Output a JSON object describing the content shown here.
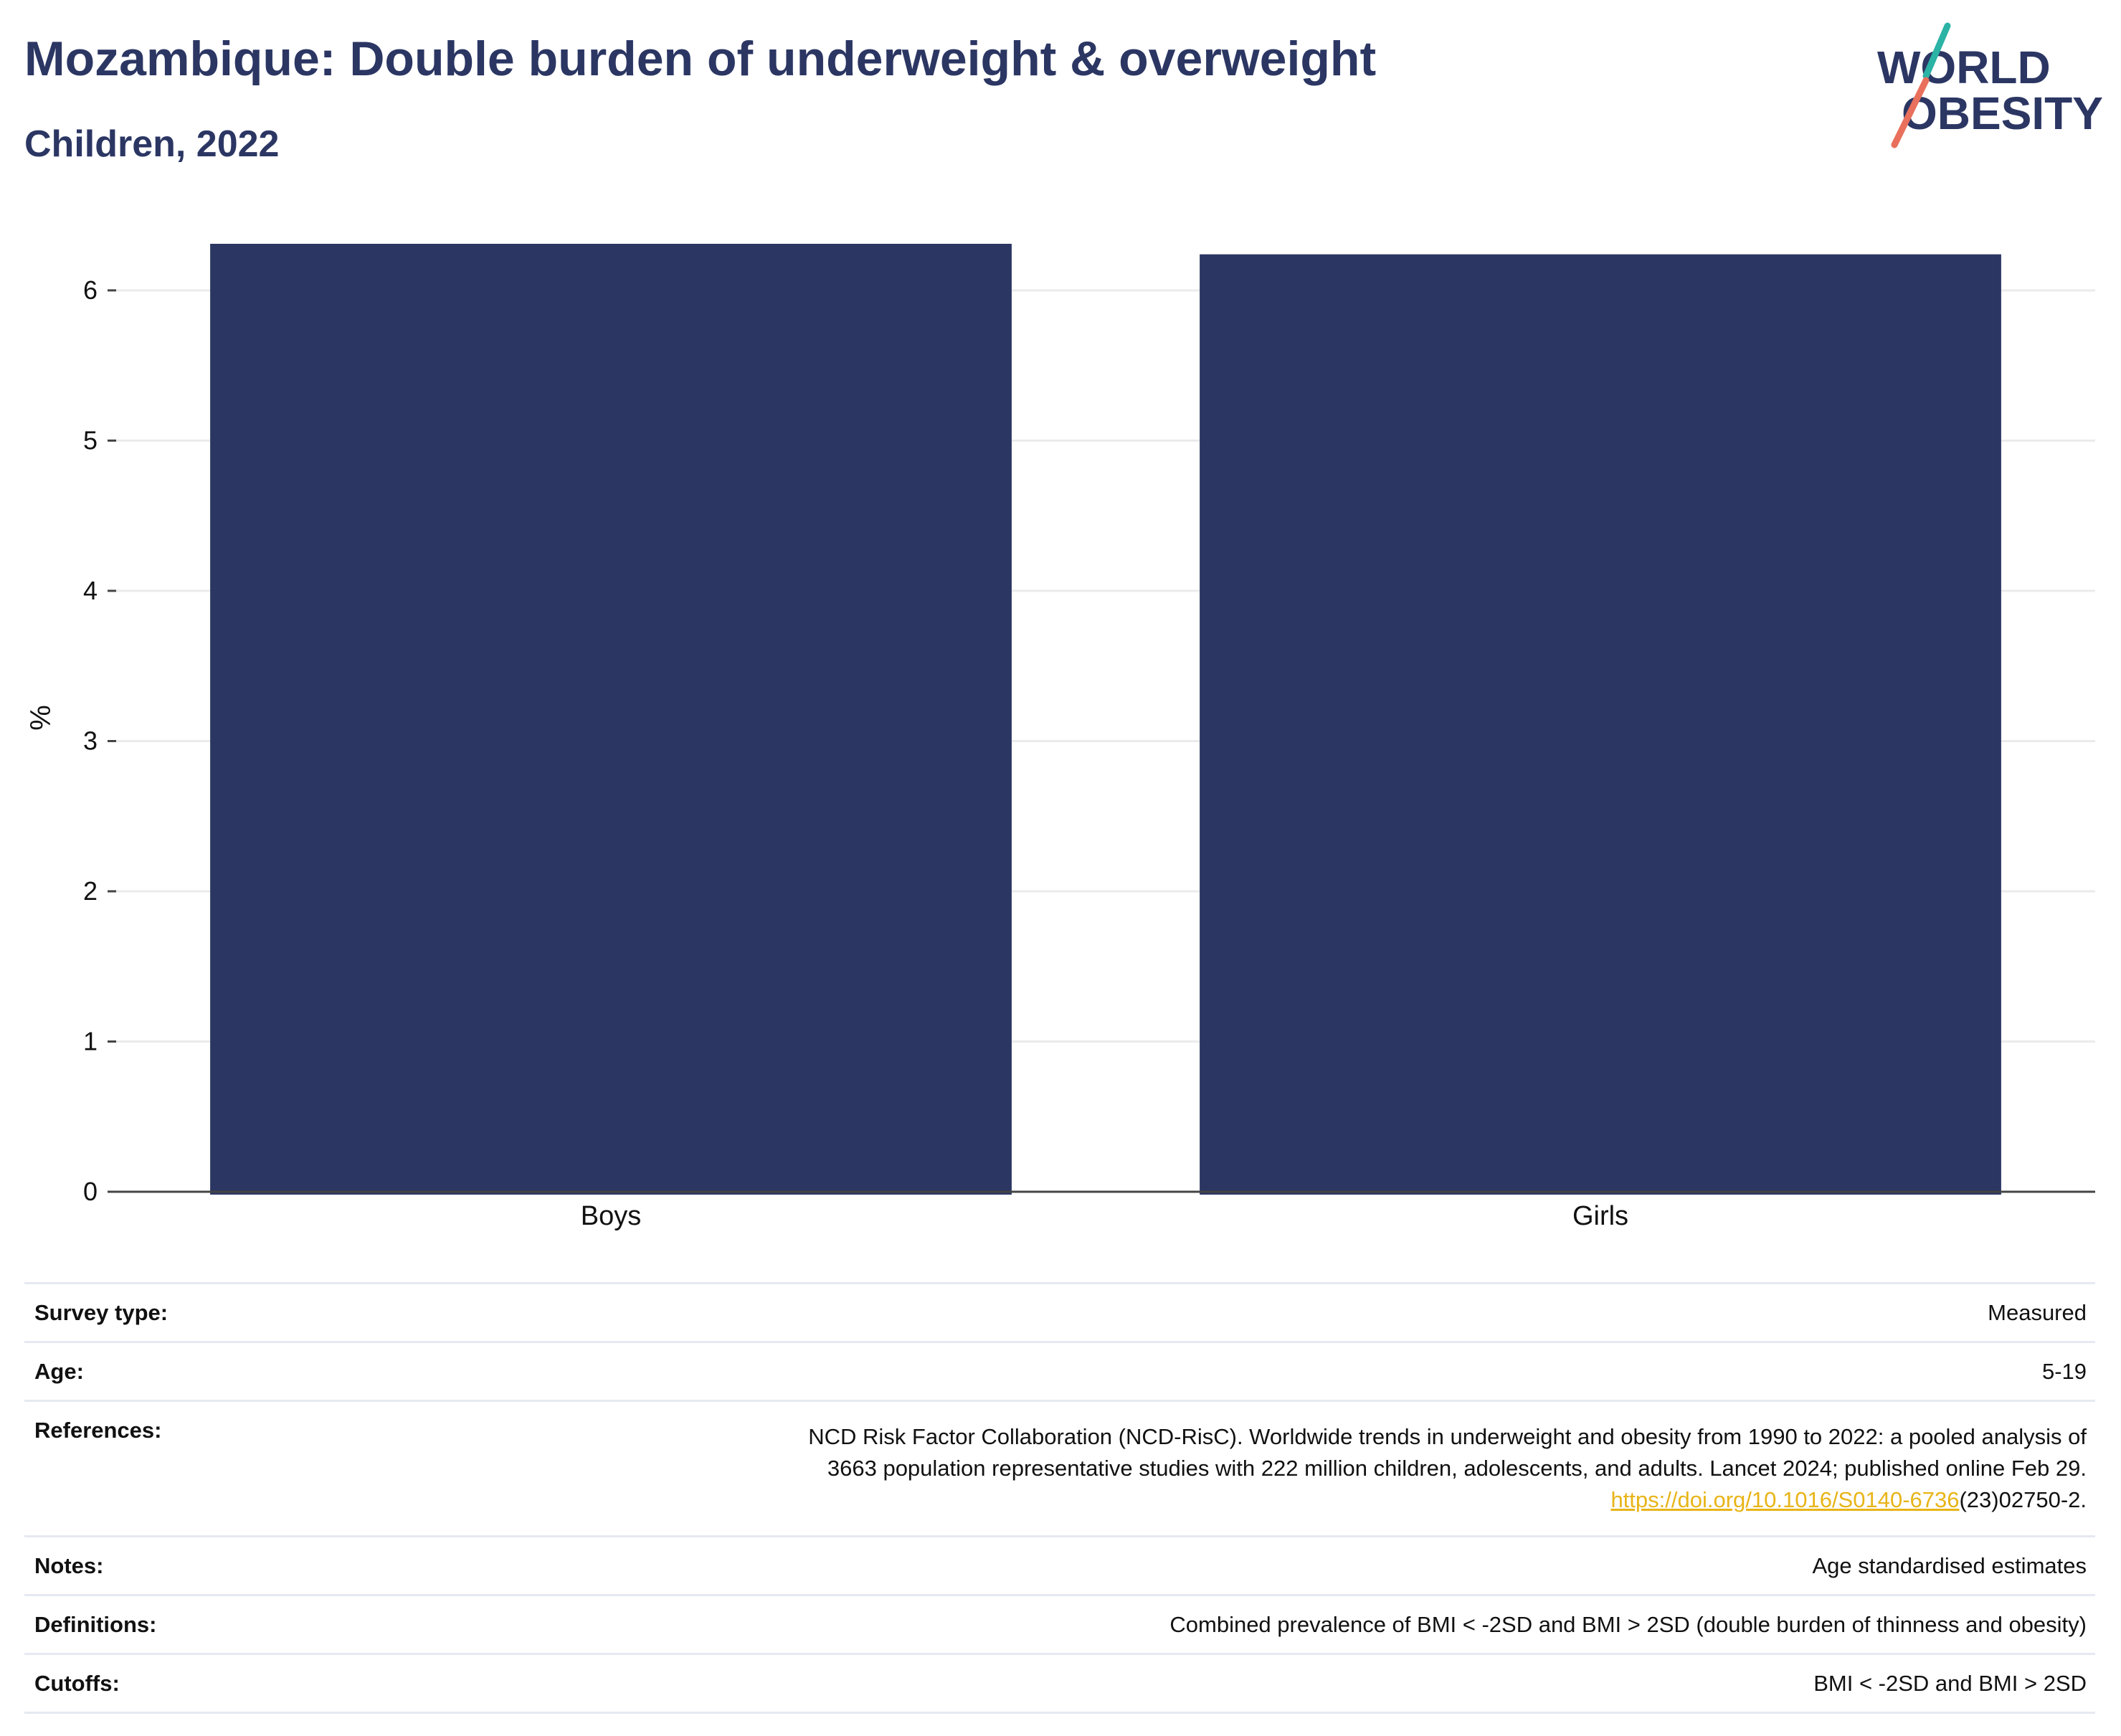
{
  "header": {
    "title": "Mozambique: Double burden of underweight & overweight",
    "subtitle": "Children, 2022"
  },
  "logo": {
    "line1": "WORLD",
    "line2": "OBESITY",
    "colors": {
      "text": "#2b3663",
      "teal": "#2bb3a5",
      "coral": "#e8705c"
    }
  },
  "chart_data": {
    "type": "bar",
    "categories": [
      "Boys",
      "Girls"
    ],
    "values": [
      6.31,
      6.24
    ],
    "title": "",
    "xlabel": "",
    "ylabel": "%",
    "ylim": [
      0,
      6.31
    ],
    "yticks": [
      0,
      1,
      2,
      3,
      4,
      5,
      6
    ],
    "grid": true,
    "legend": "none",
    "bar_color": "#2b3663"
  },
  "meta": {
    "survey_type": {
      "label": "Survey type:",
      "value": "Measured"
    },
    "age": {
      "label": "Age:",
      "value": "5-19"
    },
    "references": {
      "label": "References:",
      "line1": "NCD Risk Factor Collaboration (NCD-RisC). Worldwide trends in underweight and obesity from 1990 to 2022: a pooled analysis of",
      "line2": "3663 population representative studies with 222 million children, adolescents, and adults. Lancet 2024; published online Feb 29.",
      "link": "https://doi.org/10.1016/S0140-6736",
      "link_tail": "(23)02750-2."
    },
    "notes": {
      "label": "Notes:",
      "value": "Age standardised estimates"
    },
    "definitions": {
      "label": "Definitions:",
      "value": "Combined prevalence of BMI < -2SD and BMI > 2SD (double burden of thinness and obesity)"
    },
    "cutoffs": {
      "label": "Cutoffs:",
      "value": "BMI < -2SD and BMI > 2SD"
    }
  }
}
